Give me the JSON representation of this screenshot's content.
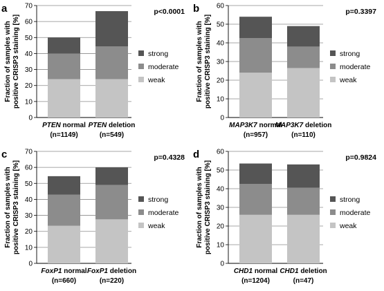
{
  "colors": {
    "strong": "#555555",
    "moderate": "#8c8c8c",
    "weak": "#c4c4c4",
    "grid": "#8a8a8a"
  },
  "chart_data": [
    {
      "type": "bar",
      "stacked": true,
      "panel": "a",
      "p_value": "p<0.0001",
      "ylabel_lines": [
        "Fraction of samples with",
        "positive CRISP3 staining [%]"
      ],
      "ylim": [
        0,
        70
      ],
      "yticks": [
        0,
        10,
        20,
        30,
        40,
        50,
        60,
        70
      ],
      "categories": [
        {
          "gene": "PTEN",
          "rest": " normal",
          "n": "(n=1149)"
        },
        {
          "gene": "PTEN",
          "rest": " deletion",
          "n": "(n=549)"
        }
      ],
      "series": [
        {
          "name": "weak",
          "values": [
            24,
            24
          ]
        },
        {
          "name": "moderate",
          "values": [
            16,
            20.5
          ]
        },
        {
          "name": "strong",
          "values": [
            10,
            22
          ]
        }
      ],
      "legend": "right",
      "grid": true
    },
    {
      "type": "bar",
      "stacked": true,
      "panel": "b",
      "p_value": "p=0.3397",
      "ylabel_lines": [
        "Fraction of samples with",
        "positive CRISP3 staining [%]"
      ],
      "ylim": [
        0,
        60
      ],
      "yticks": [
        0,
        10,
        20,
        30,
        40,
        50,
        60
      ],
      "categories": [
        {
          "gene": "MAP3K7",
          "rest": " normal",
          "n": "(n=957)"
        },
        {
          "gene": "MAP3K7",
          "rest": " deletion",
          "n": "(n=110)"
        }
      ],
      "series": [
        {
          "name": "weak",
          "values": [
            24,
            26.5
          ]
        },
        {
          "name": "moderate",
          "values": [
            18.5,
            11.5
          ]
        },
        {
          "name": "strong",
          "values": [
            11.5,
            11
          ]
        }
      ],
      "legend": "right",
      "grid": true
    },
    {
      "type": "bar",
      "stacked": true,
      "panel": "c",
      "p_value": "p=0.4328",
      "ylabel_lines": [
        "Fraction of samples with",
        "positive CRISP3 staining [%]"
      ],
      "ylim": [
        0,
        70
      ],
      "yticks": [
        0,
        10,
        20,
        30,
        40,
        50,
        60,
        70
      ],
      "categories": [
        {
          "gene": "FoxP1",
          "rest": " normal",
          "n": "(n=660)"
        },
        {
          "gene": "FoxP1",
          "rest": " deletion",
          "n": "(n=220)"
        }
      ],
      "series": [
        {
          "name": "weak",
          "values": [
            23.5,
            27.5
          ]
        },
        {
          "name": "moderate",
          "values": [
            19.5,
            21.5
          ]
        },
        {
          "name": "strong",
          "values": [
            11.5,
            11
          ]
        }
      ],
      "legend": "right",
      "grid": true
    },
    {
      "type": "bar",
      "stacked": true,
      "panel": "d",
      "p_value": "p=0.9824",
      "ylabel_lines": [
        "Fraction of samples with",
        "positive CRISP3 staining [%]"
      ],
      "ylim": [
        0,
        60
      ],
      "yticks": [
        0,
        10,
        20,
        30,
        40,
        50,
        60
      ],
      "categories": [
        {
          "gene": "CHD1",
          "rest": " normal",
          "n": "(n=1204)"
        },
        {
          "gene": "CHD1",
          "rest": " deletion",
          "n": "(n=47)"
        }
      ],
      "series": [
        {
          "name": "weak",
          "values": [
            26,
            26
          ]
        },
        {
          "name": "moderate",
          "values": [
            16.5,
            14.5
          ]
        },
        {
          "name": "strong",
          "values": [
            11,
            12.5
          ]
        }
      ],
      "legend": "right",
      "grid": true
    }
  ]
}
